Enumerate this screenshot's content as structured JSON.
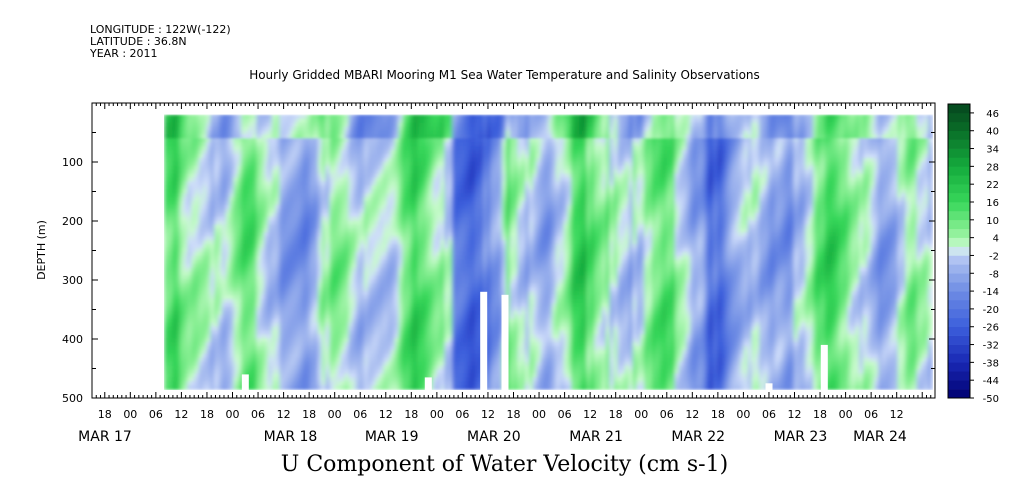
{
  "header": {
    "longitude": "LONGITUDE : 122W(-122)",
    "latitude": "LATITUDE : 36.8N",
    "year": "YEAR : 2011",
    "title": "Hourly Gridded MBARI Mooring M1 Sea Water Temperature and Salinity Observations"
  },
  "footer": {
    "variable_title": "U Component of Water Velocity (cm s-1)"
  },
  "chart_data": {
    "type": "heatmap",
    "title": "Hourly Gridded MBARI Mooring M1 Sea Water Temperature and Salinity Observations",
    "xlabel": "",
    "ylabel": "DEPTH (m)",
    "units": "cm s-1",
    "x_hour_ticks": [
      "18",
      "00",
      "06",
      "12",
      "18",
      "00",
      "06",
      "12",
      "18",
      "00",
      "06",
      "12",
      "18",
      "00",
      "06",
      "12",
      "18",
      "00",
      "06",
      "12",
      "18",
      "00",
      "06",
      "12",
      "18",
      "00",
      "06",
      "12",
      "18",
      "00",
      "06",
      "12"
    ],
    "x_date_labels": [
      "MAR 17",
      "MAR 18",
      "MAR 19",
      "MAR 20",
      "MAR 21",
      "MAR 22",
      "MAR 23",
      "MAR 24"
    ],
    "xlim": [
      "2011-03-16T15:00",
      "2011-03-24T21:00"
    ],
    "ylim": [
      500,
      0
    ],
    "y_ticks": [
      100,
      200,
      300,
      400,
      500
    ],
    "data_extent_depth_m": [
      20,
      485
    ],
    "colorbar": {
      "ticks": [
        46,
        40,
        34,
        28,
        22,
        16,
        10,
        4,
        -2,
        -8,
        -14,
        -20,
        -26,
        -32,
        -38,
        -44,
        -50
      ],
      "range": [
        -50,
        49
      ]
    },
    "missing_data_regions": [
      {
        "time": "2011-03-18T03:00",
        "depth_m": [
          460,
          485
        ]
      },
      {
        "time": "2011-03-19T22:00",
        "depth_m": [
          465,
          485
        ]
      },
      {
        "time": "2011-03-20T11:00",
        "depth_m": [
          320,
          485
        ]
      },
      {
        "time": "2011-03-20T16:00",
        "depth_m": [
          325,
          485
        ]
      },
      {
        "time": "2011-03-23T06:00",
        "depth_m": [
          475,
          485
        ]
      },
      {
        "time": "2011-03-23T19:00",
        "depth_m": [
          410,
          485
        ]
      }
    ]
  }
}
